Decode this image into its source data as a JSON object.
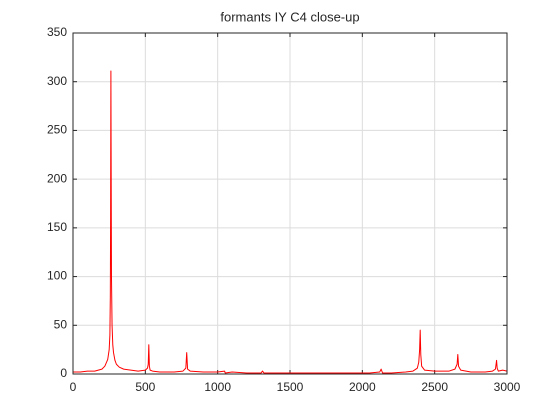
{
  "chart_data": {
    "type": "line",
    "title": "formants IY C4 close-up",
    "x": [
      0,
      50,
      100,
      150,
      200,
      220,
      240,
      250,
      255,
      258,
      260,
      262,
      264,
      266,
      270,
      275,
      280,
      290,
      300,
      320,
      350,
      400,
      450,
      500,
      515,
      520,
      524,
      528,
      533,
      550,
      600,
      700,
      760,
      780,
      786,
      792,
      810,
      900,
      1000,
      1048,
      1052,
      1100,
      1200,
      1300,
      1310,
      1320,
      1500,
      1700,
      1900,
      2050,
      2120,
      2130,
      2140,
      2200,
      2300,
      2350,
      2380,
      2390,
      2396,
      2400,
      2404,
      2410,
      2430,
      2500,
      2600,
      2640,
      2655,
      2660,
      2665,
      2680,
      2750,
      2850,
      2900,
      2920,
      2928,
      2932,
      2940,
      2970,
      3000
    ],
    "series": [
      {
        "color": "#ff0000",
        "values": [
          2,
          2,
          3,
          3,
          5,
          8,
          15,
          25,
          40,
          80,
          160,
          311,
          200,
          100,
          50,
          30,
          22,
          14,
          10,
          7,
          5,
          4,
          3,
          4,
          6,
          10,
          30,
          8,
          4,
          3,
          2,
          2,
          3,
          6,
          22,
          5,
          3,
          2,
          2,
          3,
          1,
          2,
          1,
          1,
          3,
          1,
          1,
          1,
          1,
          1,
          2,
          5,
          1,
          1,
          2,
          3,
          6,
          12,
          25,
          45,
          20,
          8,
          4,
          3,
          3,
          5,
          10,
          20,
          8,
          4,
          2,
          2,
          3,
          5,
          14,
          6,
          3,
          4,
          3
        ]
      }
    ],
    "xlim": [
      0,
      3000
    ],
    "xticks": [
      0,
      500,
      1000,
      1500,
      2000,
      2500,
      3000
    ],
    "ylim": [
      0,
      350
    ],
    "yticks": [
      0,
      50,
      100,
      150,
      200,
      250,
      300,
      350
    ],
    "grid": true
  }
}
